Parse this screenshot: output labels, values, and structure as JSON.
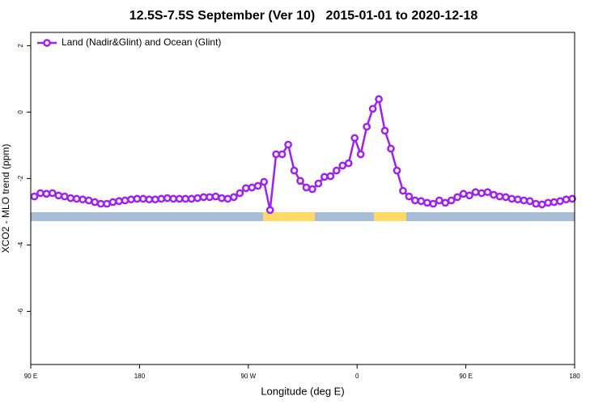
{
  "chart_data": {
    "type": "line",
    "title": "12.5S-7.5S September (Ver 10)   2015-01-01 to 2020-12-18",
    "x_label": "Longitude (deg E)",
    "y_label": "XCO2 - MLO trend (ppm)",
    "x": [
      93,
      98,
      103,
      108,
      113,
      118,
      123,
      128,
      133,
      138,
      143,
      148,
      153,
      158,
      163,
      168,
      173,
      178,
      183,
      188,
      193,
      198,
      203,
      208,
      213,
      218,
      223,
      228,
      233,
      238,
      243,
      248,
      253,
      258,
      263,
      268,
      273,
      278,
      283,
      288,
      293,
      298,
      303,
      308,
      313,
      318,
      323,
      328,
      333,
      338,
      343,
      348,
      353,
      358,
      363,
      368,
      373,
      378,
      383,
      388,
      393,
      398,
      403,
      408,
      413,
      418,
      423,
      428,
      433,
      438,
      443,
      448,
      453,
      458,
      463,
      468,
      473,
      478,
      483,
      488,
      493,
      498,
      503,
      508,
      513,
      518,
      523,
      528,
      533,
      538
    ],
    "series": [
      {
        "name": "Land (Nadir&Glint) and Ocean (Glint)",
        "color": "#a020f0",
        "values": [
          -2.54,
          -2.44,
          -2.46,
          -2.44,
          -2.51,
          -2.54,
          -2.59,
          -2.61,
          -2.63,
          -2.66,
          -2.71,
          -2.76,
          -2.76,
          -2.71,
          -2.68,
          -2.66,
          -2.63,
          -2.61,
          -2.61,
          -2.63,
          -2.63,
          -2.61,
          -2.59,
          -2.61,
          -2.61,
          -2.61,
          -2.61,
          -2.59,
          -2.56,
          -2.56,
          -2.54,
          -2.59,
          -2.61,
          -2.56,
          -2.44,
          -2.29,
          -2.27,
          -2.22,
          -2.1,
          -2.95,
          -1.27,
          -1.27,
          -0.98,
          -1.76,
          -2.07,
          -2.27,
          -2.32,
          -2.15,
          -1.95,
          -1.93,
          -1.76,
          -1.61,
          -1.54,
          -0.78,
          -1.27,
          -0.44,
          0.1,
          0.39,
          -0.56,
          -1.1,
          -1.76,
          -2.37,
          -2.54,
          -2.66,
          -2.68,
          -2.73,
          -2.76,
          -2.66,
          -2.73,
          -2.66,
          -2.56,
          -2.46,
          -2.51,
          -2.41,
          -2.44,
          -2.41,
          -2.49,
          -2.54,
          -2.56,
          -2.61,
          -2.63,
          -2.66,
          -2.68,
          -2.76,
          -2.78,
          -2.73,
          -2.71,
          -2.68,
          -2.63,
          -2.61
        ]
      }
    ],
    "xlim": [
      90,
      540
    ],
    "xticks": [
      {
        "value": 90,
        "label": "90 E"
      },
      180,
      {
        "value": 270,
        "label": "90 W"
      },
      {
        "value": 360,
        "label": "0"
      },
      {
        "value": 450,
        "label": "90 E"
      },
      {
        "value": 540,
        "label": "180"
      }
    ],
    "ylim": [
      -7.6,
      2.4
    ],
    "yticks": [
      -6,
      -4,
      -2,
      0,
      2
    ],
    "legend": "top-left"
  }
}
